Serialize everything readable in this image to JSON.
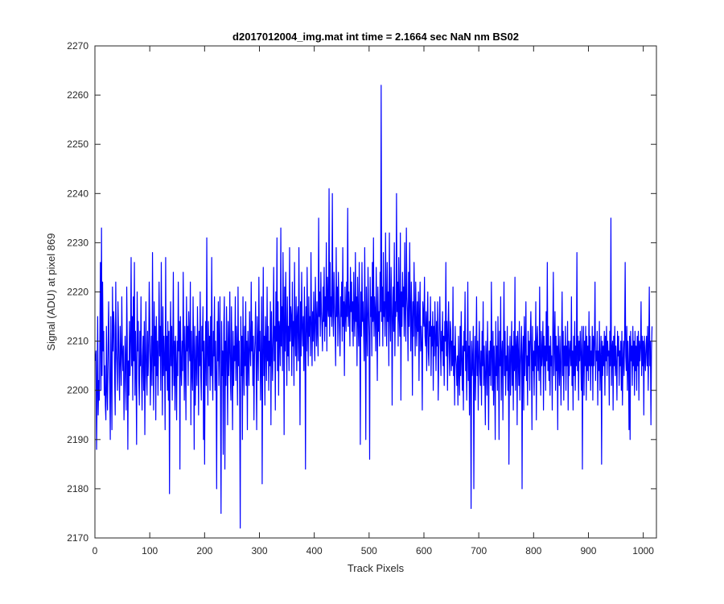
{
  "chart_data": {
    "type": "line",
    "title": "d2017012004_img.mat int time = 2.1664 sec  NaN nm BS02",
    "xlabel": "Track Pixels",
    "ylabel": "Signal (ADU) at pixel 869",
    "xlim": [
      0,
      1024
    ],
    "ylim": [
      2170,
      2270
    ],
    "xticks": [
      0,
      100,
      200,
      300,
      400,
      500,
      600,
      700,
      800,
      900,
      1000
    ],
    "yticks": [
      2170,
      2180,
      2190,
      2200,
      2210,
      2220,
      2230,
      2240,
      2250,
      2260,
      2270
    ],
    "grid": false,
    "legend": "none",
    "line_color": "#0000ff",
    "n_points": 1024,
    "series": [
      {
        "x_start": 1,
        "x_step": 1,
        "values": [
          2206,
          2208,
          2188,
          2199,
          2215,
          2195,
          2202,
          2198,
          2210,
          2226,
          2200,
          2233,
          2203,
          2222,
          2208,
          2212,
          2199,
          2205,
          2197,
          2194,
          2213,
          2200,
          2196,
          2209,
          2218,
          2207,
          2201,
          2190,
          2215,
          2204,
          2192,
          2221,
          2208,
          2216,
          2213,
          2202,
          2195,
          2222,
          2209,
          2205,
          2200,
          2218,
          2212,
          2203,
          2198,
          2213,
          2207,
          2201,
          2219,
          2208,
          2204,
          2209,
          2194,
          2200,
          2211,
          2205,
          2196,
          2221,
          2210,
          2188,
          2206,
          2199,
          2214,
          2203,
          2210,
          2227,
          2205,
          2215,
          2198,
          2219,
          2206,
          2226,
          2199,
          2212,
          2204,
          2189,
          2220,
          2208,
          2214,
          2202,
          2197,
          2212,
          2205,
          2219,
          2203,
          2196,
          2207,
          2211,
          2200,
          2214,
          2191,
          2206,
          2218,
          2203,
          2199,
          2212,
          2203,
          2208,
          2222,
          2214,
          2197,
          2205,
          2211,
          2201,
          2228,
          2207,
          2196,
          2218,
          2205,
          2213,
          2194,
          2215,
          2203,
          2210,
          2199,
          2208,
          2222,
          2207,
          2213,
          2200,
          2226,
          2209,
          2195,
          2217,
          2203,
          2211,
          2206,
          2192,
          2227,
          2204,
          2211,
          2200,
          2214,
          2198,
          2212,
          2179,
          2206,
          2218,
          2205,
          2213,
          2198,
          2208,
          2224,
          2201,
          2210,
          2196,
          2211,
          2205,
          2194,
          2210,
          2203,
          2222,
          2208,
          2214,
          2184,
          2215,
          2205,
          2201,
          2210,
          2204,
          2224,
          2209,
          2198,
          2213,
          2206,
          2194,
          2219,
          2208,
          2213,
          2201,
          2216,
          2210,
          2206,
          2222,
          2193,
          2212,
          2204,
          2200,
          2219,
          2209,
          2188,
          2213,
          2197,
          2205,
          2211,
          2201,
          2217,
          2209,
          2195,
          2212,
          2205,
          2220,
          2203,
          2198,
          2213,
          2208,
          2217,
          2190,
          2210,
          2185,
          2206,
          2214,
          2201,
          2231,
          2207,
          2197,
          2214,
          2205,
          2211,
          2200,
          2215,
          2203,
          2227,
          2204,
          2198,
          2212,
          2207,
          2219,
          2200,
          2210,
          2203,
          2180,
          2214,
          2206,
          2218,
          2201,
          2209,
          2219,
          2200,
          2175,
          2214,
          2203,
          2208,
          2187,
          2213,
          2219,
          2184,
          2210,
          2201,
          2217,
          2207,
          2193,
          2214,
          2203,
          2208,
          2220,
          2202,
          2198,
          2217,
          2206,
          2192,
          2212,
          2201,
          2209,
          2206,
          2219,
          2202,
          2213,
          2208,
          2197,
          2221,
          2205,
          2210,
          2199,
          2172,
          2215,
          2203,
          2211,
          2190,
          2219,
          2206,
          2199,
          2213,
          2205,
          2218,
          2201,
          2210,
          2192,
          2212,
          2207,
          2201,
          2216,
          2209,
          2205,
          2222,
          2208,
          2214,
          2201,
          2211,
          2194,
          2207,
          2210,
          2218,
          2205,
          2192,
          2215,
          2209,
          2202,
          2223,
          2208,
          2212,
          2198,
          2206,
          2219,
          2181,
          2207,
          2225,
          2203,
          2211,
          2197,
          2215,
          2209,
          2202,
          2221,
          2206,
          2213,
          2200,
          2210,
          2205,
          2218,
          2193,
          2216,
          2208,
          2202,
          2211,
          2225,
          2206,
          2213,
          2196,
          2220,
          2210,
          2231,
          2204,
          2218,
          2199,
          2214,
          2212,
          2205,
          2233,
          2209,
          2217,
          2204,
          2228,
          2215,
          2191,
          2221,
          2208,
          2224,
          2212,
          2201,
          2219,
          2207,
          2213,
          2204,
          2229,
          2210,
          2217,
          2215,
          2203,
          2222,
          2209,
          2214,
          2201,
          2226,
          2212,
          2207,
          2219,
          2204,
          2215,
          2217,
          2206,
          2229,
          2211,
          2193,
          2218,
          2207,
          2224,
          2213,
          2209,
          2215,
          2204,
          2221,
          2212,
          2184,
          2217,
          2208,
          2225,
          2212,
          2205,
          2219,
          2211,
          2215,
          2207,
          2228,
          2214,
          2205,
          2216,
          2210,
          2220,
          2212,
          2206,
          2223,
          2215,
          2209,
          2218,
          2212,
          2207,
          2235,
          2215,
          2220,
          2211,
          2224,
          2216,
          2213,
          2208,
          2221,
          2214,
          2225,
          2210,
          2219,
          2213,
          2230,
          2208,
          2223,
          2217,
          2215,
          2241,
          2211,
          2226,
          2215,
          2219,
          2213,
          2240,
          2216,
          2211,
          2224,
          2218,
          2213,
          2205,
          2229,
          2215,
          2221,
          2209,
          2224,
          2217,
          2212,
          2207,
          2219,
          2215,
          2222,
          2210,
          2229,
          2213,
          2218,
          2203,
          2221,
          2216,
          2212,
          2222,
          2215,
          2237,
          2213,
          2220,
          2216,
          2209,
          2225,
          2216,
          2222,
          2212,
          2218,
          2209,
          2224,
          2215,
          2211,
          2228,
          2214,
          2219,
          2205,
          2223,
          2215,
          2209,
          2226,
          2213,
          2189,
          2220,
          2211,
          2226,
          2214,
          2218,
          2212,
          2206,
          2229,
          2215,
          2190,
          2221,
          2213,
          2207,
          2225,
          2217,
          2211,
          2186,
          2223,
          2215,
          2219,
          2207,
          2226,
          2214,
          2231,
          2211,
          2219,
          2216,
          2208,
          2225,
          2215,
          2202,
          2221,
          2212,
          2216,
          2209,
          2224,
          2216,
          2262,
          2214,
          2221,
          2209,
          2228,
          2215,
          2218,
          2211,
          2232,
          2217,
          2209,
          2226,
          2214,
          2220,
          2205,
          2232,
          2216,
          2210,
          2225,
          2219,
          2197,
          2215,
          2221,
          2212,
          2230,
          2207,
          2218,
          2215,
          2240,
          2216,
          2222,
          2209,
          2227,
          2215,
          2211,
          2232,
          2198,
          2220,
          2213,
          2224,
          2217,
          2221,
          2211,
          2230,
          2216,
          2210,
          2233,
          2219,
          2216,
          2206,
          2224,
          2213,
          2230,
          2217,
          2208,
          2222,
          2215,
          2199,
          2218,
          2211,
          2226,
          2216,
          2207,
          2222,
          2214,
          2209,
          2218,
          2212,
          2220,
          2202,
          2215,
          2222,
          2208,
          2213,
          2209,
          2196,
          2218,
          2215,
          2213,
          2223,
          2211,
          2209,
          2216,
          2204,
          2214,
          2220,
          2208,
          2205,
          2214,
          2211,
          2219,
          2203,
          2213,
          2209,
          2216,
          2200,
          2213,
          2207,
          2218,
          2211,
          2204,
          2214,
          2209,
          2218,
          2198,
          2206,
          2213,
          2219,
          2210,
          2203,
          2212,
          2208,
          2216,
          2205,
          2211,
          2201,
          2214,
          2210,
          2226,
          2207,
          2214,
          2200,
          2212,
          2218,
          2208,
          2203,
          2214,
          2212,
          2204,
          2210,
          2205,
          2221,
          2203,
          2209,
          2197,
          2213,
          2207,
          2205,
          2201,
          2207,
          2197,
          2211,
          2204,
          2199,
          2213,
          2203,
          2216,
          2206,
          2200,
          2209,
          2196,
          2212,
          2208,
          2220,
          2204,
          2210,
          2198,
          2207,
          2222,
          2202,
          2209,
          2195,
          2212,
          2205,
          2176,
          2210,
          2203,
          2206,
          2213,
          2180,
          2204,
          2211,
          2198,
          2207,
          2219,
          2203,
          2210,
          2196,
          2207,
          2214,
          2204,
          2201,
          2208,
          2197,
          2212,
          2205,
          2218,
          2201,
          2209,
          2203,
          2193,
          2210,
          2206,
          2199,
          2214,
          2205,
          2192,
          2208,
          2203,
          2210,
          2201,
          2222,
          2207,
          2200,
          2212,
          2197,
          2209,
          2204,
          2190,
          2214,
          2203,
          2209,
          2200,
          2215,
          2206,
          2190,
          2212,
          2205,
          2219,
          2198,
          2207,
          2210,
          2194,
          2208,
          2222,
          2203,
          2212,
          2199,
          2207,
          2204,
          2213,
          2200,
          2209,
          2185,
          2206,
          2211,
          2199,
          2207,
          2214,
          2201,
          2209,
          2196,
          2212,
          2204,
          2223,
          2200,
          2208,
          2211,
          2193,
          2212,
          2207,
          2201,
          2214,
          2198,
          2205,
          2209,
          2213,
          2180,
          2207,
          2211,
          2196,
          2215,
          2203,
          2209,
          2218,
          2202,
          2207,
          2197,
          2212,
          2205,
          2210,
          2200,
          2211,
          2216,
          2207,
          2192,
          2213,
          2204,
          2208,
          2199,
          2210,
          2205,
          2218,
          2194,
          2210,
          2213,
          2204,
          2209,
          2202,
          2221,
          2207,
          2199,
          2212,
          2205,
          2208,
          2214,
          2196,
          2211,
          2205,
          2209,
          2200,
          2216,
          2206,
          2226,
          2204,
          2213,
          2202,
          2209,
          2199,
          2211,
          2205,
          2207,
          2196,
          2212,
          2224,
          2203,
          2209,
          2216,
          2200,
          2211,
          2204,
          2209,
          2192,
          2213,
          2206,
          2201,
          2211,
          2205,
          2197,
          2210,
          2220,
          2203,
          2212,
          2198,
          2209,
          2205,
          2213,
          2200,
          2209,
          2205,
          2214,
          2196,
          2210,
          2203,
          2208,
          2210,
          2205,
          2219,
          2201,
          2208,
          2196,
          2211,
          2203,
          2214,
          2200,
          2209,
          2205,
          2228,
          2204,
          2211,
          2198,
          2210,
          2206,
          2212,
          2207,
          2200,
          2213,
          2184,
          2207,
          2213,
          2199,
          2210,
          2205,
          2213,
          2198,
          2211,
          2204,
          2209,
          2202,
          2216,
          2205,
          2211,
          2200,
          2208,
          2205,
          2213,
          2198,
          2211,
          2205,
          2210,
          2222,
          2202,
          2208,
          2206,
          2212,
          2197,
          2208,
          2204,
          2214,
          2200,
          2206,
          2211,
          2185,
          2210,
          2203,
          2209,
          2205,
          2212,
          2199,
          2211,
          2206,
          2213,
          2203,
          2210,
          2207,
          2208,
          2197,
          2212,
          2205,
          2235,
          2201,
          2208,
          2210,
          2196,
          2211,
          2205,
          2213,
          2203,
          2209,
          2205,
          2198,
          2212,
          2207,
          2211,
          2201,
          2208,
          2205,
          2210,
          2200,
          2212,
          2197,
          2206,
          2210,
          2203,
          2211,
          2226,
          2207,
          2204,
          2213,
          2200,
          2210,
          2205,
          2192,
          2211,
          2190,
          2212,
          2206,
          2209,
          2201,
          2213,
          2205,
          2210,
          2199,
          2212,
          2204,
          2209,
          2200,
          2211,
          2205,
          2212,
          2198,
          2210,
          2206,
          2209,
          2218,
          2203,
          2211,
          2205,
          2210,
          2195,
          2211,
          2207,
          2204,
          2209,
          2211,
          2205,
          2213,
          2200,
          2209,
          2221,
          2205,
          2210,
          2193,
          2208,
          2213
        ]
      }
    ]
  }
}
